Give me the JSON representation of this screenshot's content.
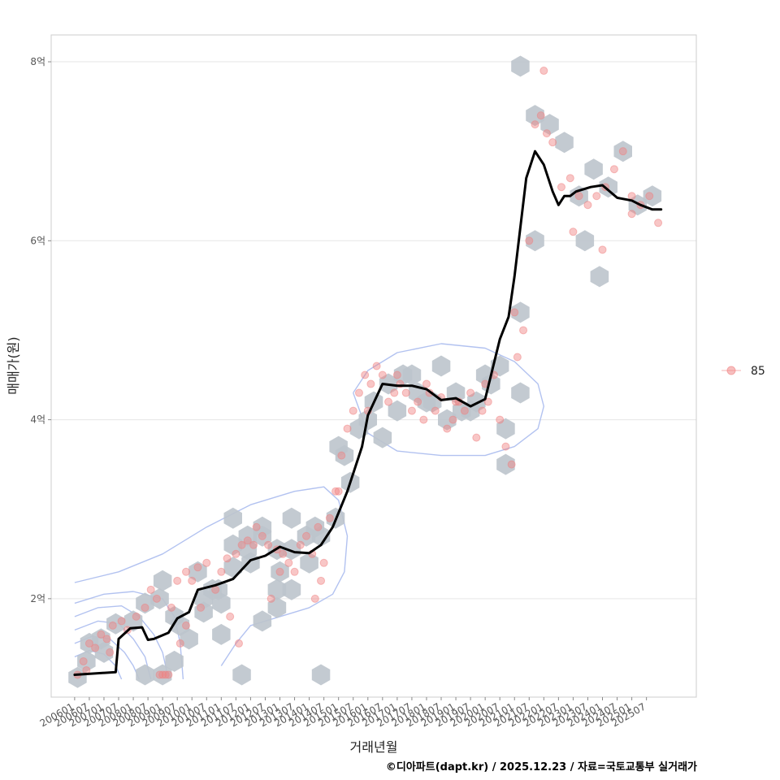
{
  "chart_data": {
    "type": "scatter",
    "ylabel": "매매가(원)",
    "xlabel": "거래년월",
    "caption": "©디아파트(dapt.kr) / 2025.12.23 / 자료=국토교통부 실거래가",
    "legend": {
      "position": "right",
      "entries": [
        "85"
      ]
    },
    "colors": {
      "points": "#f08080",
      "hex": "#bcc4cc",
      "trend": "#000000",
      "density": "#aabbee",
      "grid": "#e6e6e6",
      "panel_border": "#cccccc"
    },
    "y_ticks": [
      {
        "value": 2,
        "label": "2억"
      },
      {
        "value": 4,
        "label": "4억"
      },
      {
        "value": 6,
        "label": "6억"
      },
      {
        "value": 8,
        "label": "8억"
      }
    ],
    "ylim": [
      0.9,
      8.3
    ],
    "xlim": [
      2005.2,
      2027.2
    ],
    "x_tick_labels": [
      "200601",
      "200607",
      "200701",
      "200707",
      "200801",
      "200807",
      "200901",
      "200907",
      "201001",
      "201007",
      "201101",
      "201107",
      "201201",
      "201207",
      "201301",
      "201307",
      "201401",
      "201407",
      "201501",
      "201507",
      "201601",
      "201607",
      "201701",
      "201707",
      "201801",
      "201807",
      "201901",
      "201907",
      "202001",
      "202007",
      "202101",
      "202107",
      "202201",
      "202207",
      "202301",
      "202307",
      "202401",
      "202407",
      "202501",
      "202507"
    ],
    "trend": {
      "x": [
        2006.0,
        2007.4,
        2007.5,
        2007.9,
        2008.3,
        2008.5,
        2008.7,
        2009.2,
        2009.5,
        2009.9,
        2010.2,
        2010.8,
        2011.4,
        2012.0,
        2012.5,
        2013.0,
        2013.5,
        2014.0,
        2014.4,
        2014.8,
        2015.3,
        2015.8,
        2016.0,
        2016.5,
        2017.0,
        2017.5,
        2018.0,
        2018.5,
        2019.0,
        2019.5,
        2020.0,
        2020.5,
        2020.8,
        2021.0,
        2021.4,
        2021.7,
        2022.0,
        2022.3,
        2022.5,
        2022.7,
        2022.9,
        2023.1,
        2023.6,
        2024.0,
        2024.5,
        2025.0,
        2025.3,
        2025.7,
        2026.0
      ],
      "y": [
        1.15,
        1.18,
        1.55,
        1.67,
        1.68,
        1.54,
        1.55,
        1.62,
        1.78,
        1.85,
        2.1,
        2.15,
        2.22,
        2.43,
        2.48,
        2.58,
        2.52,
        2.51,
        2.6,
        2.8,
        3.2,
        3.7,
        4.05,
        4.4,
        4.38,
        4.38,
        4.34,
        4.22,
        4.24,
        4.15,
        4.23,
        4.9,
        5.15,
        5.6,
        6.7,
        7.0,
        6.85,
        6.55,
        6.4,
        6.5,
        6.5,
        6.55,
        6.6,
        6.62,
        6.48,
        6.45,
        6.4,
        6.35,
        6.35
      ]
    },
    "hex_bins": {
      "x": [
        2006.1,
        2006.4,
        2006.9,
        2007.4,
        2008.4,
        2009.0,
        2009.4,
        2009.9,
        2010.4,
        2010.9,
        2011.4,
        2011.9,
        2012.4,
        2012.9,
        2013.4,
        2013.9,
        2014.4,
        2014.9,
        2015.2,
        2015.7,
        2016.2,
        2016.7,
        2017.2,
        2017.7,
        2018.2,
        2018.7,
        2019.2,
        2019.7,
        2020.2,
        2020.7,
        2021.2,
        2021.7,
        2022.2,
        2022.7,
        2023.2,
        2023.7,
        2024.2,
        2024.7,
        2025.2,
        2025.7,
        2021.2,
        2021.7,
        2023.4,
        2023.9,
        2010.2,
        2011.4,
        2012.4,
        2014.2,
        2015.0,
        2016.0,
        2017.0,
        2018.0,
        2019.0,
        2020.0,
        2012.0,
        2013.0,
        2014.0,
        2008.9,
        2009.4,
        2011.0,
        2011.9,
        2013.4,
        2016.5,
        2018.5,
        2020.5,
        2006.5,
        2007.0,
        2008.0,
        2009.6,
        2010.7,
        2012.9,
        2015.4,
        2017.5,
        2019.5,
        2011.4,
        2008.4,
        2009.0,
        2010.4,
        2011.0,
        2011.7,
        2014.4,
        2012.4,
        2012.9,
        2013.4,
        2020.7,
        2021.2
      ],
      "y": [
        1.12,
        1.3,
        1.55,
        1.72,
        1.15,
        1.15,
        1.3,
        1.55,
        1.85,
        2.1,
        2.35,
        2.55,
        2.7,
        2.55,
        2.55,
        2.7,
        2.7,
        2.9,
        3.6,
        3.9,
        4.2,
        4.4,
        4.5,
        4.3,
        4.2,
        4.0,
        4.1,
        4.2,
        4.4,
        3.9,
        5.2,
        6.0,
        7.3,
        7.1,
        6.5,
        6.8,
        6.6,
        7.0,
        6.4,
        6.5,
        7.95,
        7.4,
        6.0,
        5.6,
        2.3,
        2.6,
        2.8,
        2.8,
        3.7,
        4.0,
        4.1,
        4.2,
        4.3,
        4.5,
        2.4,
        2.3,
        2.4,
        2.0,
        1.8,
        1.95,
        2.7,
        2.9,
        3.8,
        4.6,
        4.6,
        1.5,
        1.4,
        1.75,
        1.7,
        2.1,
        2.1,
        3.3,
        4.5,
        4.1,
        2.9,
        1.95,
        2.2,
        2.0,
        1.6,
        1.15,
        1.15,
        1.75,
        1.9,
        2.1,
        3.5,
        4.3
      ]
    },
    "points": {
      "x": [
        2006.1,
        2006.3,
        2006.5,
        2006.7,
        2006.9,
        2007.1,
        2007.3,
        2007.6,
        2007.8,
        2008.1,
        2008.4,
        2008.6,
        2008.8,
        2009.0,
        2009.2,
        2009.3,
        2009.5,
        2009.8,
        2010.0,
        2010.2,
        2010.5,
        2010.8,
        2011.0,
        2011.2,
        2011.5,
        2011.7,
        2011.9,
        2012.2,
        2012.4,
        2012.6,
        2012.9,
        2013.1,
        2013.3,
        2013.5,
        2013.7,
        2013.9,
        2014.1,
        2014.3,
        2014.5,
        2014.7,
        2014.9,
        2015.1,
        2015.3,
        2015.5,
        2015.7,
        2015.9,
        2016.1,
        2016.3,
        2016.5,
        2016.7,
        2016.9,
        2017.1,
        2017.3,
        2017.5,
        2017.7,
        2017.9,
        2018.1,
        2018.3,
        2018.5,
        2018.7,
        2018.9,
        2019.1,
        2019.3,
        2019.5,
        2019.7,
        2019.9,
        2020.1,
        2020.3,
        2020.5,
        2020.7,
        2020.9,
        2021.1,
        2021.3,
        2021.5,
        2021.7,
        2021.9,
        2022.1,
        2022.3,
        2022.6,
        2022.9,
        2023.2,
        2023.5,
        2023.8,
        2024.1,
        2024.4,
        2024.7,
        2025.0,
        2025.3,
        2025.6,
        2025.9,
        2006.4,
        2007.2,
        2008.9,
        2009.1,
        2009.6,
        2010.3,
        2011.3,
        2012.1,
        2013.0,
        2014.2,
        2015.0,
        2016.0,
        2017.0,
        2018.0,
        2019.0,
        2020.0,
        2021.0,
        2022.0,
        2023.0,
        2024.0,
        2025.0,
        2009.8,
        2011.6,
        2012.7,
        2014.4
      ],
      "y": [
        1.15,
        1.3,
        1.5,
        1.45,
        1.6,
        1.55,
        1.7,
        1.75,
        1.65,
        1.8,
        1.9,
        2.1,
        2.0,
        1.15,
        1.15,
        1.9,
        2.2,
        2.3,
        2.2,
        2.35,
        2.4,
        2.1,
        2.3,
        2.45,
        2.5,
        2.6,
        2.65,
        2.8,
        2.7,
        2.6,
        2.55,
        2.5,
        2.4,
        2.3,
        2.6,
        2.7,
        2.5,
        2.8,
        2.4,
        2.9,
        3.2,
        3.6,
        3.9,
        4.1,
        4.3,
        4.5,
        4.4,
        4.6,
        4.5,
        4.2,
        4.3,
        4.4,
        4.3,
        4.1,
        4.2,
        4.0,
        4.3,
        4.1,
        4.25,
        3.9,
        4.0,
        4.2,
        4.1,
        4.3,
        3.8,
        4.1,
        4.2,
        4.5,
        4.0,
        3.7,
        3.5,
        4.7,
        5.0,
        6.0,
        7.3,
        7.4,
        7.2,
        7.1,
        6.6,
        6.7,
        6.5,
        6.4,
        6.5,
        6.6,
        6.8,
        7.0,
        6.3,
        6.4,
        6.5,
        6.2,
        1.2,
        1.4,
        1.15,
        1.15,
        1.5,
        1.9,
        1.8,
        2.6,
        2.3,
        2.0,
        3.2,
        4.1,
        4.5,
        4.4,
        4.2,
        4.4,
        5.2,
        7.9,
        6.1,
        5.9,
        6.5,
        1.7,
        1.5,
        2.0,
        2.2
      ]
    },
    "density_contours": [
      {
        "x": [
          2006.0,
          2007.5,
          2009.0,
          2010.5,
          2012.0,
          2013.5,
          2014.5,
          2015.0,
          2015.3,
          2015.2,
          2014.8,
          2014.0,
          2013.0,
          2012.0,
          2011.5,
          2011.0
        ],
        "y": [
          2.18,
          2.3,
          2.5,
          2.8,
          3.05,
          3.2,
          3.25,
          3.1,
          2.7,
          2.3,
          2.05,
          1.9,
          1.8,
          1.7,
          1.5,
          1.25
        ]
      },
      {
        "x": [
          2006.0,
          2007.0,
          2008.0,
          2009.0,
          2009.4,
          2009.6,
          2009.7
        ],
        "y": [
          1.95,
          2.05,
          2.08,
          2.0,
          1.8,
          1.5,
          1.1
        ]
      },
      {
        "x": [
          2006.0,
          2006.8,
          2007.6,
          2008.2,
          2008.7,
          2009.0,
          2009.2
        ],
        "y": [
          1.8,
          1.9,
          1.92,
          1.8,
          1.6,
          1.4,
          1.1
        ]
      },
      {
        "x": [
          2006.0,
          2006.8,
          2007.5,
          2008.0,
          2008.4,
          2008.6
        ],
        "y": [
          1.65,
          1.75,
          1.72,
          1.55,
          1.35,
          1.1
        ]
      },
      {
        "x": [
          2006.0,
          2006.6,
          2007.2,
          2007.7,
          2008.0,
          2008.2
        ],
        "y": [
          1.5,
          1.58,
          1.55,
          1.4,
          1.25,
          1.1
        ]
      },
      {
        "x": [
          2006.0,
          2006.5,
          2007.0,
          2007.4,
          2007.6
        ],
        "y": [
          1.35,
          1.42,
          1.38,
          1.25,
          1.1
        ]
      },
      {
        "x": [
          2015.5,
          2016.0,
          2017.0,
          2018.5,
          2020.0,
          2021.0,
          2021.8,
          2022.0,
          2021.8,
          2021.0,
          2020.0,
          2018.5,
          2017.0,
          2016.0,
          2015.5
        ],
        "y": [
          4.3,
          4.55,
          4.75,
          4.85,
          4.8,
          4.65,
          4.4,
          4.15,
          3.9,
          3.7,
          3.6,
          3.6,
          3.65,
          3.85,
          4.3
        ]
      }
    ]
  }
}
